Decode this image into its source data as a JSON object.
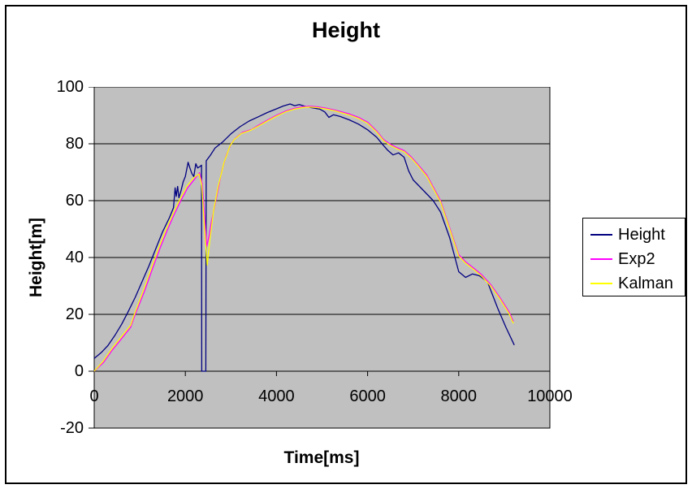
{
  "window": {
    "background_color": "#FFFFFF",
    "frame_border_color": "#000000"
  },
  "chart_data": {
    "type": "line",
    "title": "Height",
    "xlabel": "Time[ms]",
    "ylabel": "Height[m]",
    "xlim": [
      0,
      10000
    ],
    "ylim": [
      -20,
      100
    ],
    "xticks": [
      0,
      2000,
      4000,
      6000,
      8000,
      10000
    ],
    "yticks": [
      -20,
      0,
      20,
      40,
      60,
      80,
      100
    ],
    "grid": "horizontal gridlines every 20 units, x axis drawn at y=0",
    "plot_bg": "#C0C0C0",
    "grid_color": "#000000",
    "axis_color": "#000000",
    "legend_position": "right",
    "series": [
      {
        "name": "Height",
        "color": "#000080",
        "points": [
          [
            0,
            4.5
          ],
          [
            150,
            6.5
          ],
          [
            300,
            9
          ],
          [
            450,
            12.5
          ],
          [
            600,
            16.5
          ],
          [
            730,
            20.5
          ],
          [
            900,
            26
          ],
          [
            1050,
            31.5
          ],
          [
            1200,
            37
          ],
          [
            1350,
            43
          ],
          [
            1500,
            49
          ],
          [
            1650,
            54
          ],
          [
            1740,
            57.5
          ],
          [
            1775,
            64.5
          ],
          [
            1800,
            61.5
          ],
          [
            1830,
            65
          ],
          [
            1860,
            61
          ],
          [
            1905,
            63.5
          ],
          [
            1950,
            66.5
          ],
          [
            2000,
            68.5
          ],
          [
            2060,
            73.5
          ],
          [
            2100,
            71.5
          ],
          [
            2145,
            69.5
          ],
          [
            2185,
            68.5
          ],
          [
            2230,
            73
          ],
          [
            2270,
            71.5
          ],
          [
            2320,
            72
          ],
          [
            2355,
            72.5
          ],
          [
            2360,
            0
          ],
          [
            2450,
            0
          ],
          [
            2458,
            74
          ],
          [
            2550,
            76
          ],
          [
            2650,
            78.5
          ],
          [
            2810,
            80.5
          ],
          [
            3000,
            83.5
          ],
          [
            3200,
            86
          ],
          [
            3400,
            88
          ],
          [
            3600,
            89.5
          ],
          [
            3800,
            91
          ],
          [
            4000,
            92.3
          ],
          [
            4150,
            93.3
          ],
          [
            4300,
            94
          ],
          [
            4400,
            93.4
          ],
          [
            4500,
            93.8
          ],
          [
            4650,
            93.1
          ],
          [
            4800,
            92.6
          ],
          [
            4950,
            92.2
          ],
          [
            5060,
            91.2
          ],
          [
            5150,
            89.3
          ],
          [
            5250,
            90.2
          ],
          [
            5400,
            89.6
          ],
          [
            5600,
            88.4
          ],
          [
            5800,
            86.9
          ],
          [
            6000,
            84.9
          ],
          [
            6200,
            82.3
          ],
          [
            6320,
            79.9
          ],
          [
            6450,
            77.6
          ],
          [
            6560,
            76.1
          ],
          [
            6680,
            76.8
          ],
          [
            6800,
            75.3
          ],
          [
            6900,
            70.5
          ],
          [
            7000,
            67.3
          ],
          [
            7200,
            64
          ],
          [
            7440,
            60
          ],
          [
            7600,
            56
          ],
          [
            7800,
            47
          ],
          [
            8000,
            35
          ],
          [
            8150,
            33
          ],
          [
            8300,
            34.2
          ],
          [
            8450,
            33.6
          ],
          [
            8630,
            31.5
          ],
          [
            8860,
            22
          ],
          [
            9040,
            15.3
          ],
          [
            9220,
            9.2
          ]
        ]
      },
      {
        "name": "Exp2",
        "color": "#FF00FF",
        "points": [
          [
            0,
            0
          ],
          [
            200,
            3
          ],
          [
            400,
            7.5
          ],
          [
            600,
            11.5
          ],
          [
            800,
            15.5
          ],
          [
            900,
            20
          ],
          [
            1100,
            28
          ],
          [
            1300,
            37
          ],
          [
            1450,
            43.5
          ],
          [
            1600,
            49.5
          ],
          [
            1750,
            55
          ],
          [
            1900,
            60
          ],
          [
            2050,
            64.5
          ],
          [
            2200,
            67.5
          ],
          [
            2310,
            69.8
          ],
          [
            2370,
            66
          ],
          [
            2420,
            55
          ],
          [
            2470,
            44
          ],
          [
            2520,
            47.5
          ],
          [
            2570,
            52.5
          ],
          [
            2670,
            60
          ],
          [
            2800,
            70.5
          ],
          [
            2900,
            76
          ],
          [
            3005,
            80
          ],
          [
            3100,
            82
          ],
          [
            3250,
            84
          ],
          [
            3450,
            85
          ],
          [
            3600,
            86.5
          ],
          [
            3800,
            88.3
          ],
          [
            4000,
            90
          ],
          [
            4200,
            91.5
          ],
          [
            4400,
            92.5
          ],
          [
            4600,
            93.1
          ],
          [
            4750,
            93.2
          ],
          [
            4900,
            93
          ],
          [
            5100,
            92.5
          ],
          [
            5300,
            91.8
          ],
          [
            5600,
            90.5
          ],
          [
            5800,
            89.3
          ],
          [
            6000,
            87.6
          ],
          [
            6200,
            84.5
          ],
          [
            6350,
            81.5
          ],
          [
            6500,
            79.8
          ],
          [
            6650,
            78.6
          ],
          [
            6800,
            77.6
          ],
          [
            6950,
            75.5
          ],
          [
            7100,
            72.8
          ],
          [
            7300,
            69
          ],
          [
            7600,
            60
          ],
          [
            7800,
            50.5
          ],
          [
            8000,
            41
          ],
          [
            8150,
            38.5
          ],
          [
            8350,
            36
          ],
          [
            8500,
            34
          ],
          [
            8700,
            30.5
          ],
          [
            8900,
            26
          ],
          [
            9100,
            21
          ],
          [
            9200,
            17.5
          ]
        ]
      },
      {
        "name": "Kalman",
        "color": "#FFFF00",
        "points": [
          [
            0,
            0
          ],
          [
            200,
            3.6
          ],
          [
            400,
            8.2
          ],
          [
            600,
            12.2
          ],
          [
            800,
            16.2
          ],
          [
            880,
            20
          ],
          [
            1080,
            28.5
          ],
          [
            1280,
            37.5
          ],
          [
            1430,
            44
          ],
          [
            1580,
            50
          ],
          [
            1730,
            55.5
          ],
          [
            1880,
            60.5
          ],
          [
            2030,
            65
          ],
          [
            2180,
            68
          ],
          [
            2300,
            69.4
          ],
          [
            2360,
            65.5
          ],
          [
            2410,
            53
          ],
          [
            2480,
            37.3
          ],
          [
            2540,
            46.5
          ],
          [
            2620,
            56.5
          ],
          [
            2720,
            65
          ],
          [
            2850,
            73.5
          ],
          [
            2980,
            79.3
          ],
          [
            3080,
            81.6
          ],
          [
            3230,
            83.6
          ],
          [
            3430,
            84.7
          ],
          [
            3600,
            86.2
          ],
          [
            3800,
            88
          ],
          [
            4000,
            89.7
          ],
          [
            4200,
            91.2
          ],
          [
            4400,
            92.2
          ],
          [
            4600,
            92.8
          ],
          [
            4750,
            92.9
          ],
          [
            4900,
            92.7
          ],
          [
            5100,
            92.2
          ],
          [
            5300,
            91.5
          ],
          [
            5600,
            90.1
          ],
          [
            5800,
            88.9
          ],
          [
            6000,
            87.2
          ],
          [
            6200,
            84.1
          ],
          [
            6350,
            81.1
          ],
          [
            6500,
            79.4
          ],
          [
            6650,
            78.2
          ],
          [
            6800,
            77.2
          ],
          [
            6950,
            75.1
          ],
          [
            7100,
            72.4
          ],
          [
            7300,
            68.5
          ],
          [
            7600,
            59.5
          ],
          [
            7800,
            50
          ],
          [
            8000,
            40.5
          ],
          [
            8150,
            38
          ],
          [
            8350,
            35.5
          ],
          [
            8500,
            33.5
          ],
          [
            8700,
            30
          ],
          [
            8900,
            25.5
          ],
          [
            9100,
            20.4
          ],
          [
            9200,
            16.8
          ]
        ]
      }
    ]
  },
  "legend": {
    "items": [
      {
        "label": "Height",
        "color": "#000080"
      },
      {
        "label": "Exp2",
        "color": "#FF00FF"
      },
      {
        "label": "Kalman",
        "color": "#FFFF00"
      }
    ]
  }
}
